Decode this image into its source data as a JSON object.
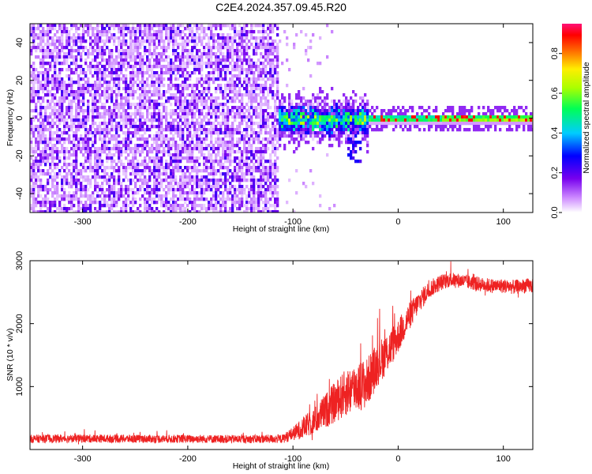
{
  "title": "C2E4.2024.357.09.45.R20",
  "colors": {
    "background": "#ffffff",
    "axis": "#000000",
    "snr_line": "#ee2222"
  },
  "chart_data": [
    {
      "type": "heatmap",
      "title": "C2E4.2024.357.09.45.R20",
      "xlabel": "Height of straight line (km)",
      "ylabel": "Frequency (Hz)",
      "xlim": [
        -350,
        128
      ],
      "ylim": [
        -50,
        50
      ],
      "xticks": [
        "-300",
        "-200",
        "-100",
        "0",
        "100"
      ],
      "xtick_values": [
        -300,
        -200,
        -100,
        0,
        100
      ],
      "yticks": [
        "40",
        "20",
        "0",
        "-20",
        "-40"
      ],
      "ytick_values": [
        40,
        20,
        0,
        -20,
        -40
      ],
      "grid": false,
      "colormap": "rainbow (white → violet → blue → cyan → green → yellow → red → magenta)",
      "description_regions": [
        {
          "x_range": [
            -350,
            -115
          ],
          "freq_range": [
            -50,
            50
          ],
          "amplitude_level": 0.15,
          "pattern": "broadband noise"
        },
        {
          "x_range": [
            -115,
            -30
          ],
          "freq_range": [
            -10,
            10
          ],
          "amplitude_level": 0.5,
          "pattern": "emerging signal with spread"
        },
        {
          "x_range": [
            -30,
            128
          ],
          "freq_range": [
            -3,
            3
          ],
          "amplitude_level": 0.85,
          "pattern": "narrow carrier near 0 Hz"
        }
      ],
      "colorbar": {
        "label": "Normalized spectral amplitude",
        "ticks": [
          "0.0",
          "0.2",
          "0.4",
          "0.6",
          "0.8"
        ],
        "tick_values": [
          0.0,
          0.2,
          0.4,
          0.6,
          0.8
        ],
        "range": [
          0,
          0.95
        ]
      }
    },
    {
      "type": "line",
      "xlabel": "Height of straight line (km)",
      "ylabel": "SNR (10 * v/v)",
      "xlim": [
        -350,
        128
      ],
      "ylim": [
        0,
        3000
      ],
      "xticks": [
        "-300",
        "-200",
        "-100",
        "0",
        "100"
      ],
      "xtick_values": [
        -300,
        -200,
        -100,
        0,
        100
      ],
      "yticks": [
        "3000",
        "2000",
        "1000"
      ],
      "ytick_values": [
        3000,
        2000,
        1000
      ],
      "grid": false,
      "series": [
        {
          "color": "#ee2222",
          "x": [
            -350,
            -300,
            -250,
            -200,
            -150,
            -110,
            -100,
            -90,
            -80,
            -70,
            -60,
            -50,
            -40,
            -30,
            -20,
            -10,
            0,
            10,
            20,
            30,
            40,
            50,
            60,
            70,
            80,
            90,
            100,
            110,
            120,
            128
          ],
          "y": [
            170,
            175,
            170,
            170,
            165,
            170,
            250,
            350,
            450,
            600,
            750,
            900,
            1000,
            1050,
            1350,
            1550,
            1800,
            2100,
            2350,
            2550,
            2650,
            2700,
            2680,
            2650,
            2620,
            2600,
            2600,
            2580,
            2600,
            2600
          ],
          "spread": [
            130,
            130,
            130,
            130,
            130,
            140,
            220,
            350,
            420,
            550,
            650,
            750,
            800,
            800,
            700,
            650,
            550,
            450,
            350,
            280,
            260,
            230,
            230,
            230,
            230,
            230,
            230,
            230,
            230,
            230
          ]
        }
      ]
    }
  ]
}
